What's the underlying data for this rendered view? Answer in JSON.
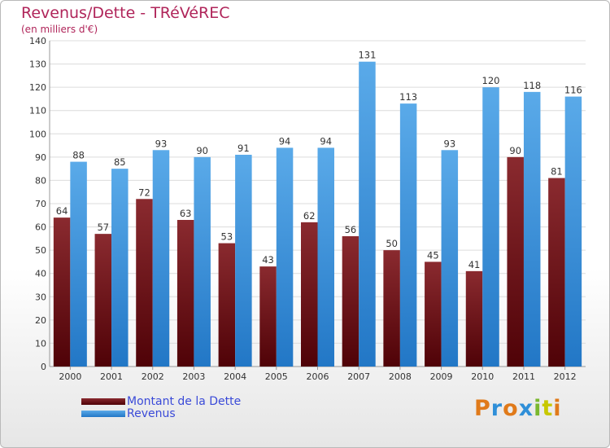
{
  "chart_data": {
    "type": "bar",
    "title": "Revenus/Dette - TRéVéREC",
    "subtitle": "(en milliers d'€)",
    "categories": [
      "2000",
      "2001",
      "2002",
      "2003",
      "2004",
      "2005",
      "2006",
      "2007",
      "2008",
      "2009",
      "2010",
      "2011",
      "2012"
    ],
    "series": [
      {
        "name": "Montant de la Dette",
        "color": "#6e0f14",
        "values": [
          64,
          57,
          72,
          63,
          53,
          43,
          62,
          56,
          50,
          45,
          41,
          90,
          81
        ]
      },
      {
        "name": "Revenus",
        "color": "#2f8fd8",
        "values": [
          88,
          85,
          93,
          90,
          91,
          94,
          94,
          131,
          113,
          93,
          120,
          118,
          116
        ]
      }
    ],
    "ylim": [
      0,
      140
    ],
    "yticks": [
      0,
      10,
      20,
      30,
      40,
      50,
      60,
      70,
      80,
      90,
      100,
      110,
      120,
      130,
      140
    ],
    "grid": true,
    "legend_position": "bottom-left"
  },
  "brand": {
    "logo_letters": [
      "P",
      "r",
      "o",
      "x",
      "i",
      "t",
      "i"
    ],
    "logo_colors": [
      "#e07a1a",
      "#2f8fd8",
      "#e07a1a",
      "#2f8fd8",
      "#7ab82e",
      "#c8c800",
      "#e07a1a"
    ]
  }
}
